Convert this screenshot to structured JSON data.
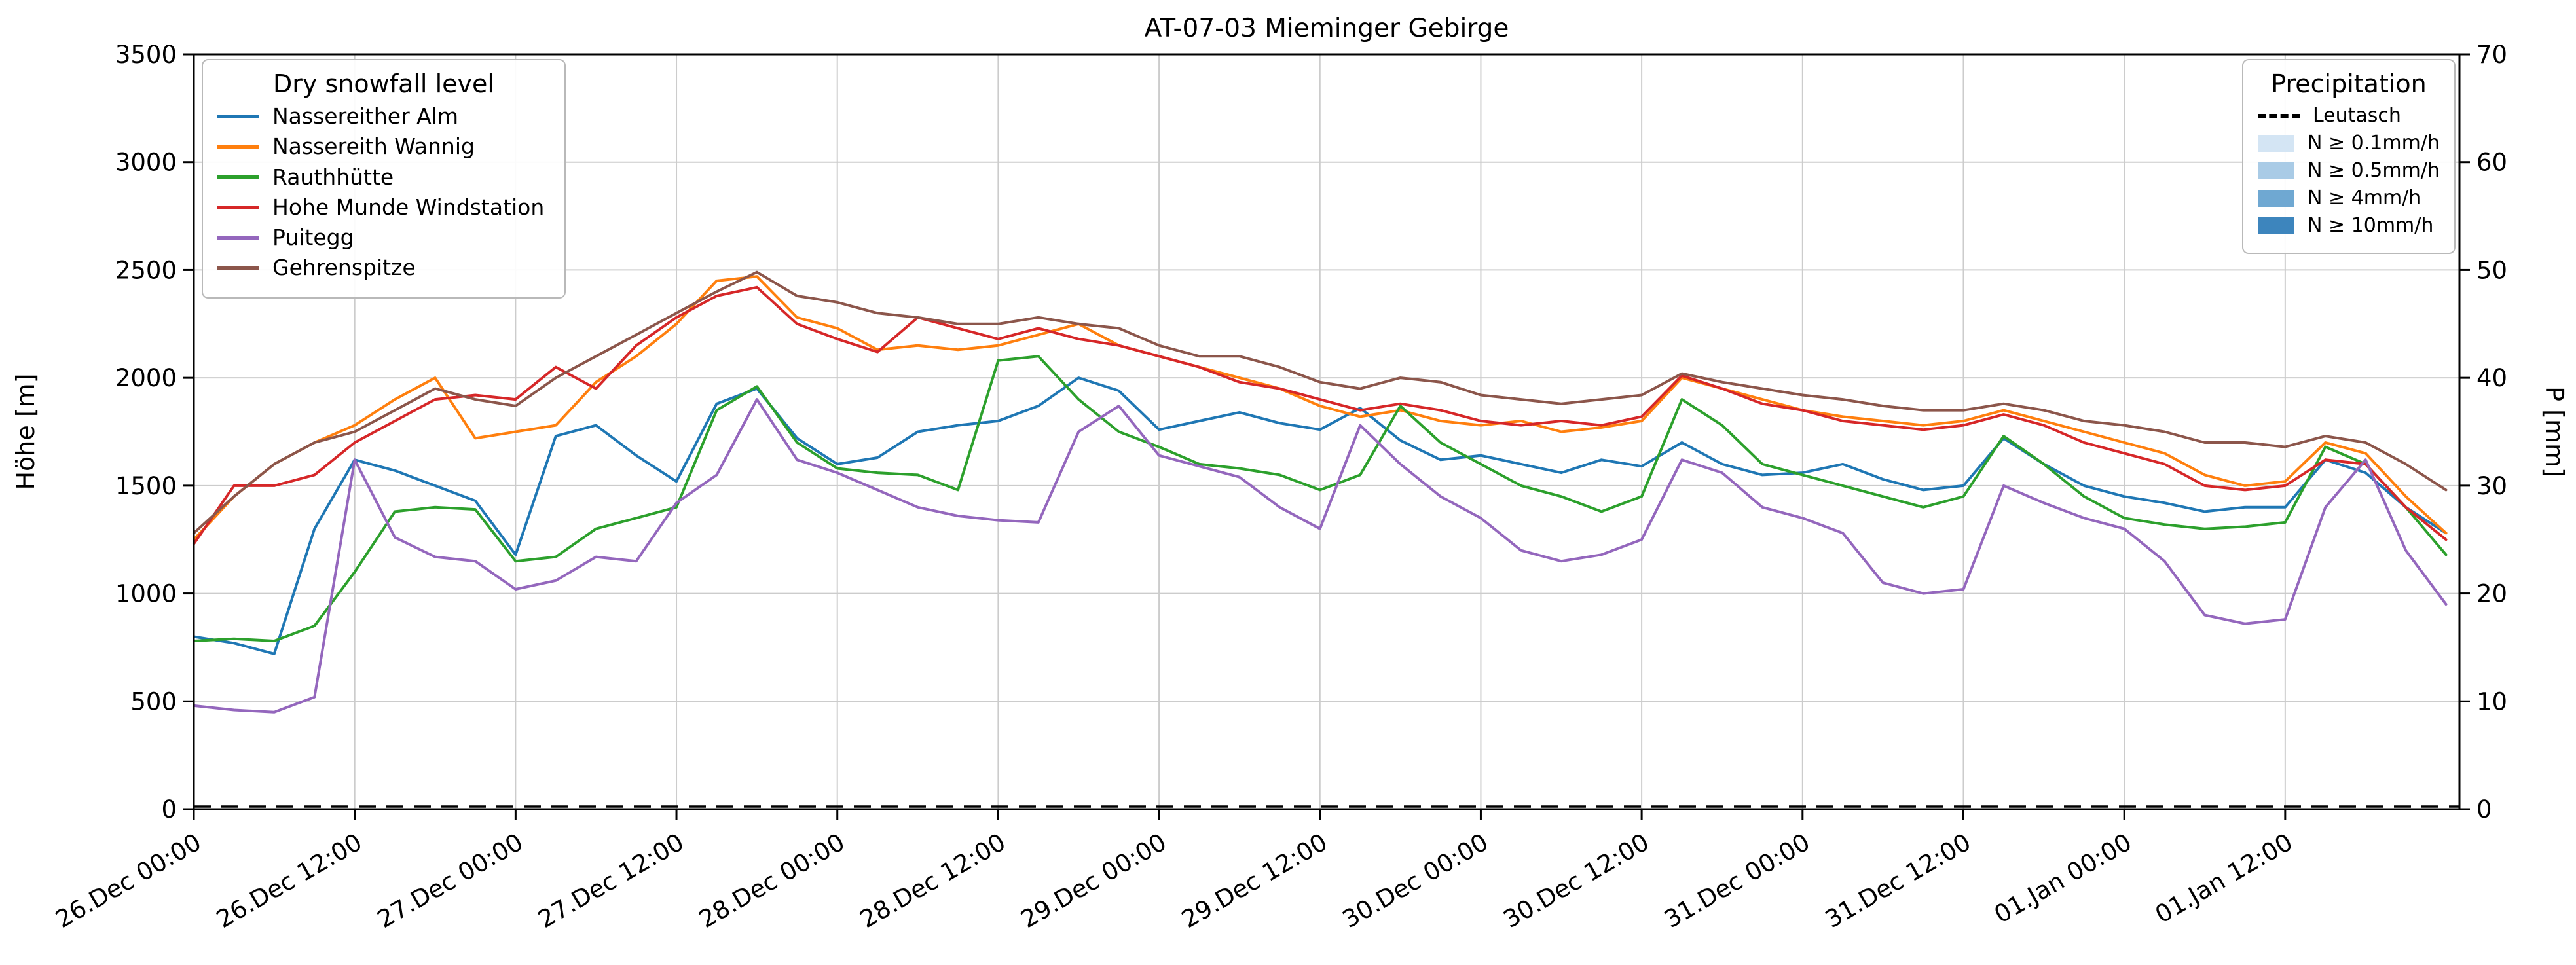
{
  "chart_data": {
    "type": "line",
    "title": "AT-07-03 Mieminger Gebirge",
    "ylabel_left": "Höhe [m]",
    "ylabel_right": "P [mm]",
    "ylim_left": [
      0,
      3500
    ],
    "ylim_right": [
      0,
      70
    ],
    "x_domain_hours": [
      0,
      169
    ],
    "x_tick_hours": [
      0,
      12,
      24,
      36,
      48,
      60,
      72,
      84,
      96,
      108,
      120,
      132,
      144,
      156
    ],
    "x_tick_labels": [
      "26.Dec 00:00",
      "26.Dec 12:00",
      "27.Dec 00:00",
      "27.Dec 12:00",
      "28.Dec 00:00",
      "28.Dec 12:00",
      "29.Dec 00:00",
      "29.Dec 12:00",
      "30.Dec 00:00",
      "30.Dec 12:00",
      "31.Dec 00:00",
      "31.Dec 12:00",
      "01.Jan 00:00",
      "01.Jan 12:00"
    ],
    "y_ticks_left": [
      0,
      500,
      1000,
      1500,
      2000,
      2500,
      3000,
      3500
    ],
    "y_ticks_right": [
      0,
      10,
      20,
      30,
      40,
      50,
      60,
      70
    ],
    "legend_title": "Dry snowfall level",
    "x_hours": [
      0,
      3,
      6,
      9,
      12,
      15,
      18,
      21,
      24,
      27,
      30,
      33,
      36,
      39,
      42,
      45,
      48,
      51,
      54,
      57,
      60,
      63,
      66,
      69,
      72,
      75,
      78,
      81,
      84,
      87,
      90,
      93,
      96,
      99,
      102,
      105,
      108,
      111,
      114,
      117,
      120,
      123,
      126,
      129,
      132,
      135,
      138,
      141,
      144,
      147,
      150,
      153,
      156,
      159,
      162,
      165,
      168
    ],
    "series": [
      {
        "name": "Nassereither Alm",
        "color": "#1f77b4",
        "values": [
          800,
          770,
          720,
          1300,
          1620,
          1570,
          1500,
          1430,
          1180,
          1730,
          1780,
          1640,
          1520,
          1880,
          1950,
          1720,
          1600,
          1630,
          1750,
          1780,
          1800,
          1870,
          2000,
          1940,
          1760,
          1800,
          1840,
          1790,
          1760,
          1860,
          1710,
          1620,
          1640,
          1600,
          1560,
          1620,
          1590,
          1700,
          1600,
          1550,
          1560,
          1600,
          1530,
          1480,
          1500,
          1720,
          1600,
          1500,
          1450,
          1420,
          1380,
          1400,
          1400,
          1620,
          1560,
          1400,
          1280
        ]
      },
      {
        "name": "Nassereith Wannig",
        "color": "#ff7f0e",
        "values": [
          1250,
          1450,
          1600,
          1700,
          1780,
          1900,
          2000,
          1720,
          1750,
          1780,
          1980,
          2100,
          2250,
          2450,
          2470,
          2280,
          2230,
          2130,
          2150,
          2130,
          2150,
          2200,
          2250,
          2150,
          2100,
          2050,
          2000,
          1950,
          1870,
          1820,
          1850,
          1800,
          1780,
          1800,
          1750,
          1770,
          1800,
          2000,
          1950,
          1900,
          1850,
          1820,
          1800,
          1780,
          1800,
          1850,
          1800,
          1750,
          1700,
          1650,
          1550,
          1500,
          1520,
          1700,
          1650,
          1450,
          1280
        ]
      },
      {
        "name": "Rauthhütte",
        "color": "#2ca02c",
        "values": [
          780,
          790,
          780,
          850,
          1100,
          1380,
          1400,
          1390,
          1150,
          1170,
          1300,
          1350,
          1400,
          1850,
          1960,
          1700,
          1580,
          1560,
          1550,
          1480,
          2080,
          2100,
          1900,
          1750,
          1680,
          1600,
          1580,
          1550,
          1480,
          1550,
          1870,
          1700,
          1600,
          1500,
          1450,
          1380,
          1450,
          1900,
          1780,
          1600,
          1550,
          1500,
          1450,
          1400,
          1450,
          1730,
          1600,
          1450,
          1350,
          1320,
          1300,
          1310,
          1330,
          1680,
          1600,
          1400,
          1180
        ]
      },
      {
        "name": "Hohe Munde Windstation",
        "color": "#d62728",
        "values": [
          1230,
          1500,
          1500,
          1550,
          1700,
          1800,
          1900,
          1920,
          1900,
          2050,
          1950,
          2150,
          2280,
          2380,
          2420,
          2250,
          2180,
          2120,
          2280,
          2230,
          2180,
          2230,
          2180,
          2150,
          2100,
          2050,
          1980,
          1950,
          1900,
          1850,
          1880,
          1850,
          1800,
          1780,
          1800,
          1780,
          1820,
          2010,
          1950,
          1880,
          1850,
          1800,
          1780,
          1760,
          1780,
          1830,
          1780,
          1700,
          1650,
          1600,
          1500,
          1480,
          1500,
          1620,
          1600,
          1400,
          1250
        ]
      },
      {
        "name": "Puitegg",
        "color": "#9467bd",
        "values": [
          480,
          460,
          450,
          520,
          1620,
          1260,
          1170,
          1150,
          1020,
          1060,
          1170,
          1150,
          1420,
          1550,
          1900,
          1620,
          1560,
          1480,
          1400,
          1360,
          1340,
          1330,
          1750,
          1870,
          1640,
          1590,
          1540,
          1400,
          1300,
          1780,
          1600,
          1450,
          1350,
          1200,
          1150,
          1180,
          1250,
          1620,
          1560,
          1400,
          1350,
          1280,
          1050,
          1000,
          1020,
          1500,
          1420,
          1350,
          1300,
          1150,
          900,
          860,
          880,
          1400,
          1620,
          1200,
          950
        ]
      },
      {
        "name": "Gehrenspitze",
        "color": "#8c564b",
        "values": [
          1280,
          1450,
          1600,
          1700,
          1750,
          1850,
          1950,
          1900,
          1870,
          2000,
          2100,
          2200,
          2300,
          2400,
          2490,
          2380,
          2350,
          2300,
          2280,
          2250,
          2250,
          2280,
          2250,
          2230,
          2150,
          2100,
          2100,
          2050,
          1980,
          1950,
          2000,
          1980,
          1920,
          1900,
          1880,
          1900,
          1920,
          2020,
          1980,
          1950,
          1920,
          1900,
          1870,
          1850,
          1850,
          1880,
          1850,
          1800,
          1780,
          1750,
          1700,
          1700,
          1680,
          1730,
          1700,
          1600,
          1480
        ]
      }
    ],
    "precipitation": {
      "station": "Leutasch",
      "unit": "mm",
      "constant_mm": 0
    },
    "precipitation_legend": {
      "title": "Precipitation",
      "line_label": "Leutasch",
      "classes": [
        {
          "label": "N ≥ 0.1mm/h",
          "color": "#d4e5f4"
        },
        {
          "label": "N ≥ 0.5mm/h",
          "color": "#a9cbe6"
        },
        {
          "label": "N ≥ 4mm/h",
          "color": "#6fa8d2"
        },
        {
          "label": "N ≥ 10mm/h",
          "color": "#3d85bd"
        }
      ]
    },
    "layout": {
      "grid_color": "#cccccc",
      "axis_color": "#000000",
      "background": "#ffffff",
      "legend_position_left": "upper left",
      "legend_position_right": "upper right",
      "grid": "on"
    }
  }
}
